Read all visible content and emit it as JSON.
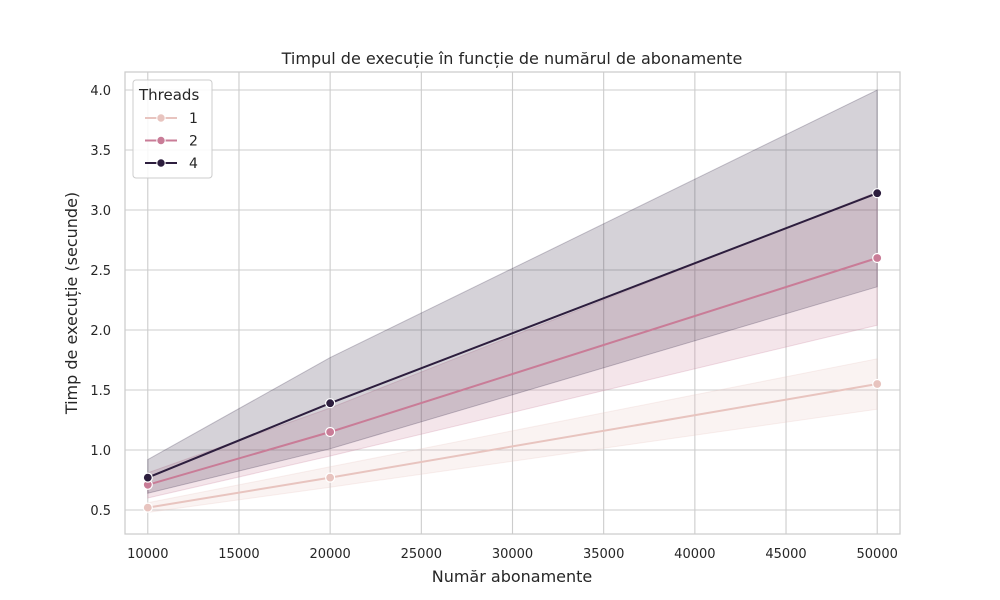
{
  "chart_data": {
    "type": "line",
    "title": "Timpul de execuție în funcție de numărul de abonamente",
    "xlabel": "Număr abonamente",
    "ylabel": "Timp de execuție (secunde)",
    "x": [
      10000,
      20000,
      50000
    ],
    "xlim": [
      8750,
      51250
    ],
    "ylim": [
      0.3,
      4.15
    ],
    "xticks": [
      10000,
      15000,
      20000,
      25000,
      30000,
      35000,
      40000,
      45000,
      50000
    ],
    "yticks": [
      0.5,
      1.0,
      1.5,
      2.0,
      2.5,
      3.0,
      3.5,
      4.0
    ],
    "grid": true,
    "legend": {
      "title": "Threads",
      "position": "top-left"
    },
    "series": [
      {
        "name": "1",
        "color": "#e8c4bf",
        "values": [
          0.52,
          0.77,
          1.55
        ],
        "ci_low": [
          0.48,
          0.69,
          1.34
        ],
        "ci_high": [
          0.56,
          0.86,
          1.76
        ]
      },
      {
        "name": "2",
        "color": "#c97c97",
        "values": [
          0.71,
          1.15,
          2.6
        ],
        "ci_low": [
          0.6,
          0.95,
          2.04
        ],
        "ci_high": [
          0.81,
          1.35,
          3.15
        ]
      },
      {
        "name": "4",
        "color": "#2d1e3e",
        "values": [
          0.77,
          1.39,
          3.14
        ],
        "ci_low": [
          0.64,
          1.01,
          2.36
        ],
        "ci_high": [
          0.92,
          1.77,
          4.0
        ]
      }
    ]
  }
}
